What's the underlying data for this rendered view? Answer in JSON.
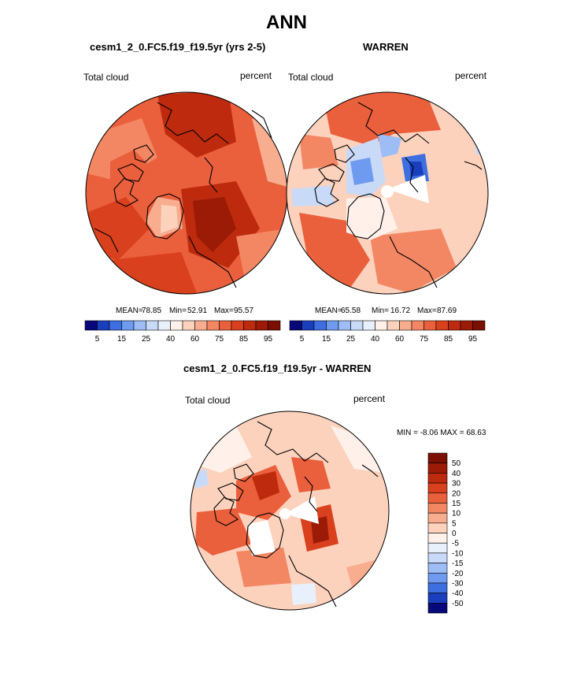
{
  "page": {
    "title": "ANN",
    "panel_a": {
      "case": "cesm1_2_0.FC5.f19_f19.5yr (yrs 2-5)",
      "var": "Total cloud",
      "units": "percent",
      "mean_label": "MEAN=",
      "mean": "78.85",
      "min_label": "Min=",
      "min": "52.91",
      "max_label": "Max=",
      "max": "95.57"
    },
    "panel_b": {
      "case": "WARREN",
      "var": "Total cloud",
      "units": "percent",
      "mean_label": "MEAN=",
      "mean": "65.58",
      "min_label": "Min=",
      "min": "16.72",
      "max_label": "Max=",
      "max": "87.69"
    },
    "diff": {
      "case": "cesm1_2_0.FC5.f19_f19.5yr - WARREN",
      "var": "Total cloud",
      "units": "percent",
      "minmax": "MIN =  -8.06 MAX =  68.63"
    }
  },
  "chart_data": [
    {
      "type": "heatmap",
      "projection": "north-polar-stereographic",
      "title": "cesm1_2_0.FC5.f19_f19.5yr (yrs 2-5)",
      "variable": "Total cloud",
      "units": "percent",
      "mean": 78.85,
      "min": 52.91,
      "max": 95.57,
      "colorbar": {
        "orientation": "horizontal",
        "levels": [
          5,
          10,
          15,
          20,
          25,
          30,
          40,
          50,
          60,
          70,
          75,
          80,
          85,
          90,
          95
        ],
        "tick_labels": [
          "5",
          "15",
          "25",
          "40",
          "60",
          "75",
          "85",
          "95"
        ],
        "colors": [
          "#08087a",
          "#1a3fbd",
          "#3d6fe0",
          "#6e9af0",
          "#9ebdf6",
          "#c9daf8",
          "#e8f0fb",
          "#fff1ea",
          "#fcd2bd",
          "#f9ad8f",
          "#f38763",
          "#ea5f3c",
          "#d9401d",
          "#bd2a0e",
          "#9b1b06",
          "#7a0f02"
        ]
      }
    },
    {
      "type": "heatmap",
      "projection": "north-polar-stereographic",
      "title": "WARREN",
      "variable": "Total cloud",
      "units": "percent",
      "mean": 65.58,
      "min": 16.72,
      "max": 87.69,
      "colorbar": {
        "orientation": "horizontal",
        "levels": [
          5,
          10,
          15,
          20,
          25,
          30,
          40,
          50,
          60,
          70,
          75,
          80,
          85,
          90,
          95
        ],
        "tick_labels": [
          "5",
          "15",
          "25",
          "40",
          "60",
          "75",
          "85",
          "95"
        ],
        "colors": [
          "#08087a",
          "#1a3fbd",
          "#3d6fe0",
          "#6e9af0",
          "#9ebdf6",
          "#c9daf8",
          "#e8f0fb",
          "#fff1ea",
          "#fcd2bd",
          "#f9ad8f",
          "#f38763",
          "#ea5f3c",
          "#d9401d",
          "#bd2a0e",
          "#9b1b06",
          "#7a0f02"
        ]
      }
    },
    {
      "type": "heatmap",
      "projection": "north-polar-stereographic",
      "title": "cesm1_2_0.FC5.f19_f19.5yr - WARREN",
      "variable": "Total cloud",
      "units": "percent",
      "min": -8.06,
      "max": 68.63,
      "colorbar": {
        "orientation": "vertical",
        "tick_labels": [
          "50",
          "40",
          "30",
          "20",
          "15",
          "10",
          "5",
          "0",
          "-5",
          "-10",
          "-15",
          "-20",
          "-30",
          "-40",
          "-50"
        ],
        "colors": [
          "#7a0f02",
          "#9b1b06",
          "#bd2a0e",
          "#d9401d",
          "#ea5f3c",
          "#f38763",
          "#f9ad8f",
          "#fcd2bd",
          "#fff1ea",
          "#e8f0fb",
          "#c9daf8",
          "#9ebdf6",
          "#6e9af0",
          "#3d6fe0",
          "#1a3fbd",
          "#08087a"
        ]
      }
    }
  ]
}
